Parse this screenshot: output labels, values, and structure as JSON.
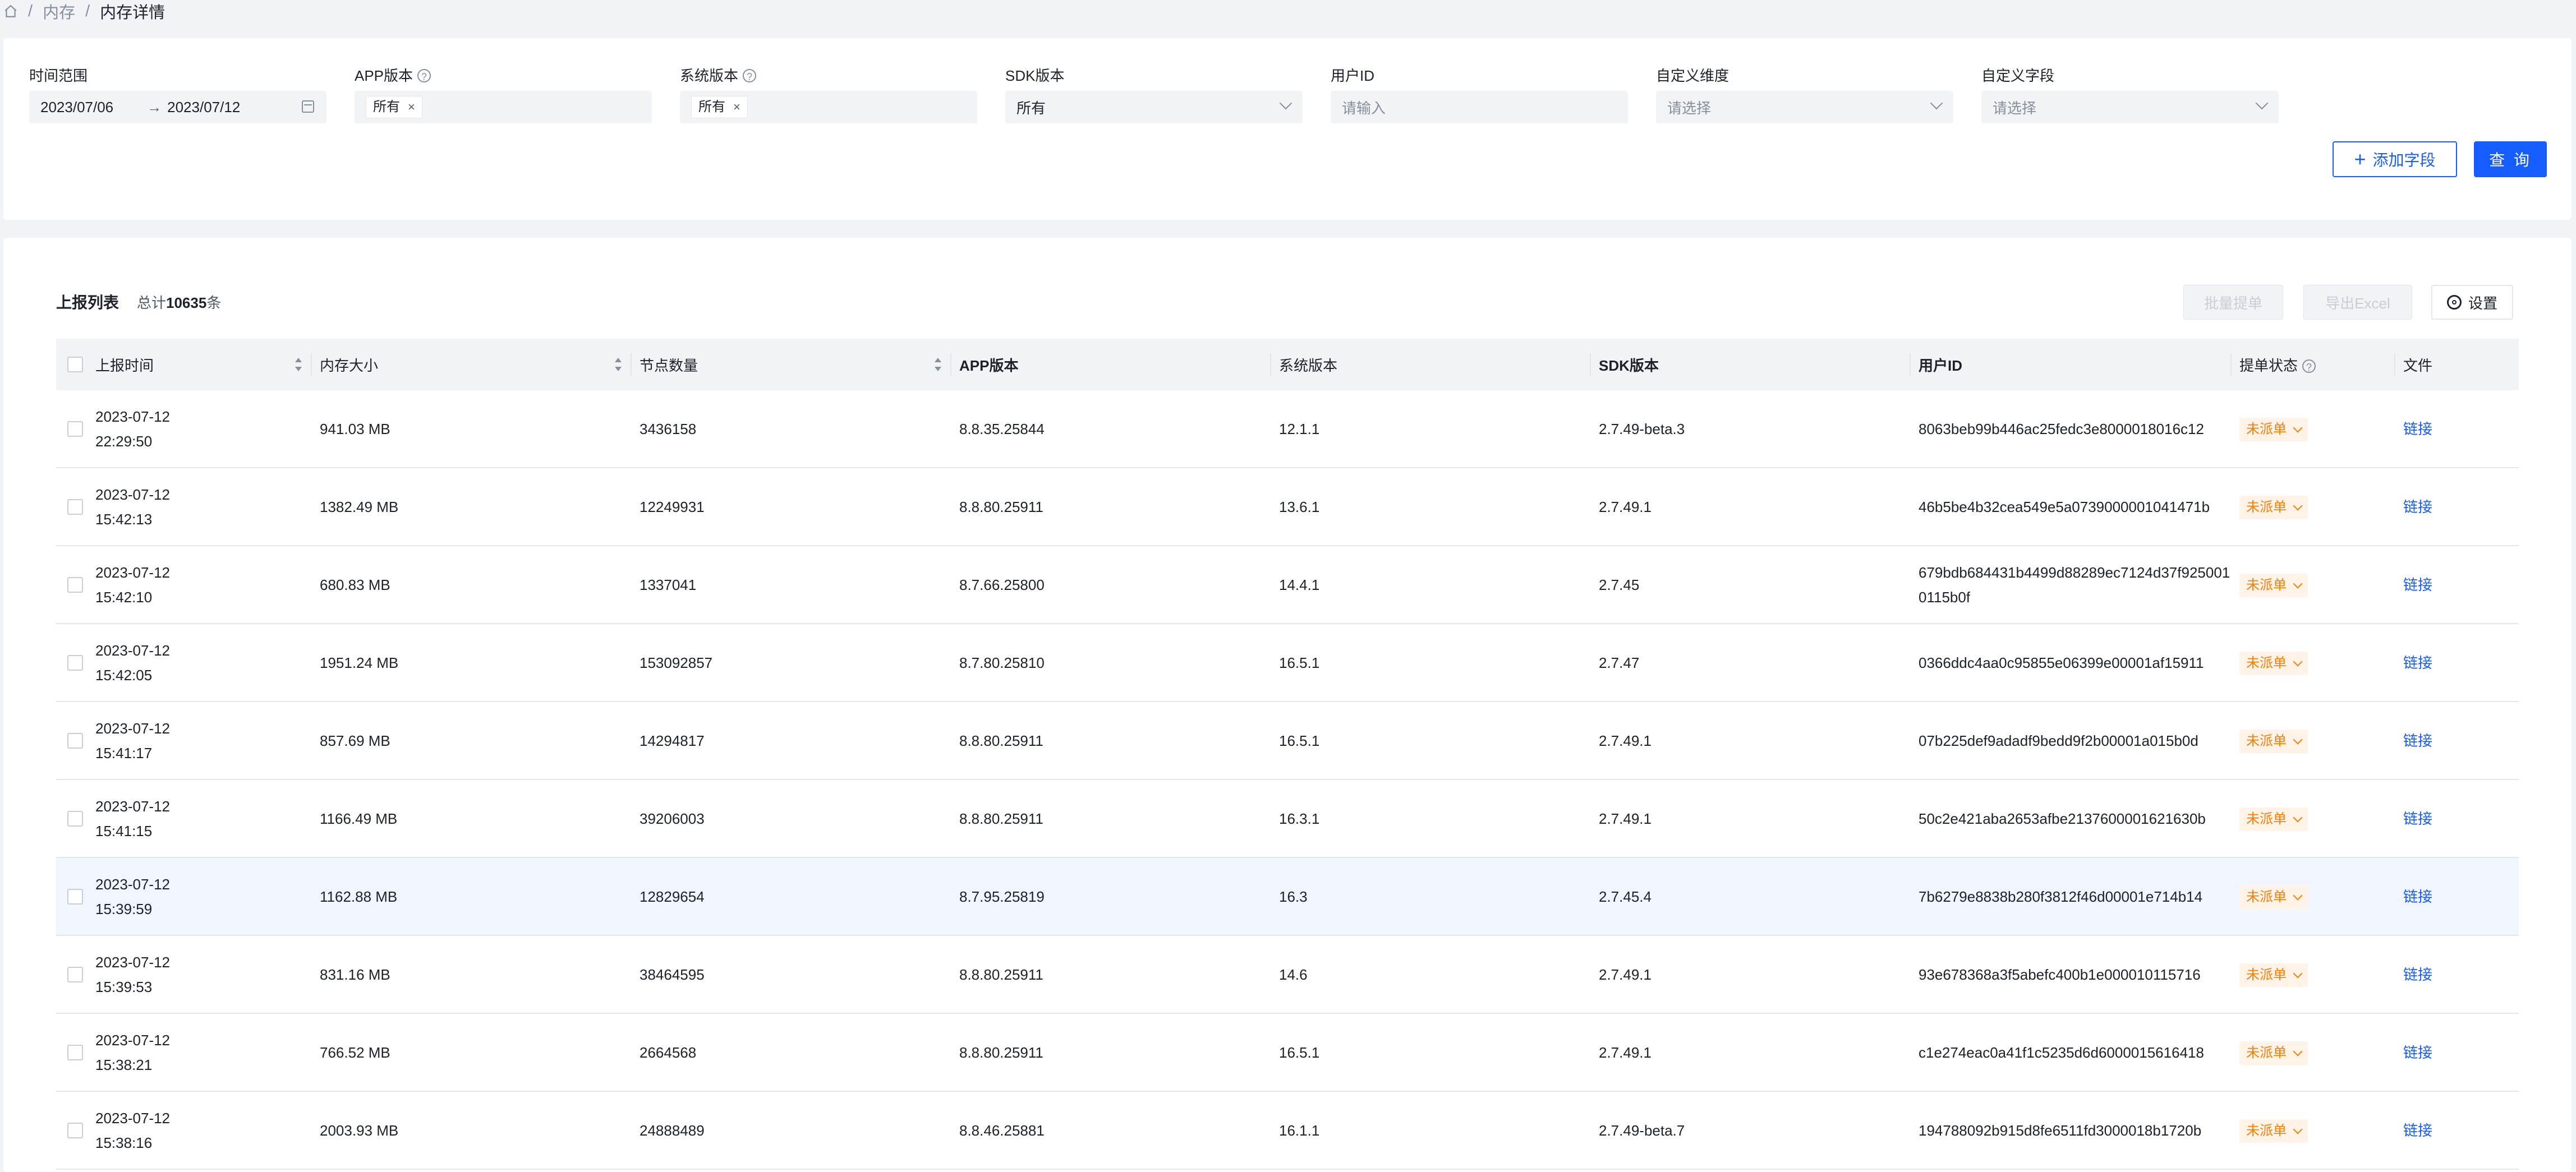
{
  "breadcrumb": {
    "items": [
      "内存"
    ],
    "current": "内存详情"
  },
  "filters": {
    "time_range": {
      "label": "时间范围",
      "start": "2023/07/06",
      "end": "2023/07/12"
    },
    "app_version": {
      "label": "APP版本",
      "tag": "所有"
    },
    "os_version": {
      "label": "系统版本",
      "tag": "所有"
    },
    "sdk_version": {
      "label": "SDK版本",
      "value": "所有"
    },
    "user_id": {
      "label": "用户ID",
      "placeholder": "请输入"
    },
    "custom_dimension": {
      "label": "自定义维度",
      "placeholder": "请选择"
    },
    "custom_field": {
      "label": "自定义字段",
      "placeholder": "请选择"
    },
    "add_field_label": "添加字段",
    "query_label": "查 询"
  },
  "list": {
    "title": "上报列表",
    "total_prefix": "总计",
    "total_count": "10635",
    "total_suffix": "条",
    "batch_label": "批量提单",
    "export_label": "导出Excel",
    "settings_label": "设置",
    "columns": [
      "上报时间",
      "内存大小",
      "节点数量",
      "APP版本",
      "系统版本",
      "SDK版本",
      "用户ID",
      "提单状态",
      "文件"
    ],
    "rows": [
      {
        "date": "2023-07-12",
        "time": "22:29:50",
        "memory": "941.03 MB",
        "nodes": "3436158",
        "app": "8.8.35.25844",
        "os": "12.1.1",
        "sdk": "2.7.49-beta.3",
        "user_id": "8063beb99b446ac25fedc3e8000018016c12",
        "status": "未派单",
        "file": "链接"
      },
      {
        "date": "2023-07-12",
        "time": "15:42:13",
        "memory": "1382.49 MB",
        "nodes": "12249931",
        "app": "8.8.80.25911",
        "os": "13.6.1",
        "sdk": "2.7.49.1",
        "user_id": "46b5be4b32cea549e5a0739000001041471b",
        "status": "未派单",
        "file": "链接"
      },
      {
        "date": "2023-07-12",
        "time": "15:42:10",
        "memory": "680.83 MB",
        "nodes": "1337041",
        "app": "8.7.66.25800",
        "os": "14.4.1",
        "sdk": "2.7.45",
        "user_id": "679bdb684431b4499d88289ec7124d37f9250010115b0f",
        "status": "未派单",
        "file": "链接"
      },
      {
        "date": "2023-07-12",
        "time": "15:42:05",
        "memory": "1951.24 MB",
        "nodes": "153092857",
        "app": "8.7.80.25810",
        "os": "16.5.1",
        "sdk": "2.7.47",
        "user_id": "0366ddc4aa0c95855e06399e00001af15911",
        "status": "未派单",
        "file": "链接"
      },
      {
        "date": "2023-07-12",
        "time": "15:41:17",
        "memory": "857.69 MB",
        "nodes": "14294817",
        "app": "8.8.80.25911",
        "os": "16.5.1",
        "sdk": "2.7.49.1",
        "user_id": "07b225def9adadf9bedd9f2b00001a015b0d",
        "status": "未派单",
        "file": "链接"
      },
      {
        "date": "2023-07-12",
        "time": "15:41:15",
        "memory": "1166.49 MB",
        "nodes": "39206003",
        "app": "8.8.80.25911",
        "os": "16.3.1",
        "sdk": "2.7.49.1",
        "user_id": "50c2e421aba2653afbe2137600001621630b",
        "status": "未派单",
        "file": "链接"
      },
      {
        "date": "2023-07-12",
        "time": "15:39:59",
        "memory": "1162.88 MB",
        "nodes": "12829654",
        "app": "8.7.95.25819",
        "os": "16.3",
        "sdk": "2.7.45.4",
        "user_id": "7b6279e8838b280f3812f46d00001e714b14",
        "status": "未派单",
        "file": "链接"
      },
      {
        "date": "2023-07-12",
        "time": "15:39:53",
        "memory": "831.16 MB",
        "nodes": "38464595",
        "app": "8.8.80.25911",
        "os": "14.6",
        "sdk": "2.7.49.1",
        "user_id": "93e678368a3f5abefc400b1e000010115716",
        "status": "未派单",
        "file": "链接"
      },
      {
        "date": "2023-07-12",
        "time": "15:38:21",
        "memory": "766.52 MB",
        "nodes": "2664568",
        "app": "8.8.80.25911",
        "os": "16.5.1",
        "sdk": "2.7.49.1",
        "user_id": "c1e274eac0a41f1c5235d6d6000015616418",
        "status": "未派单",
        "file": "链接"
      },
      {
        "date": "2023-07-12",
        "time": "15:38:16",
        "memory": "2003.93 MB",
        "nodes": "24888489",
        "app": "8.8.46.25881",
        "os": "16.1.1",
        "sdk": "2.7.49-beta.7",
        "user_id": "194788092b915d8fe6511fd3000018b1720b",
        "status": "未派单",
        "file": "链接"
      }
    ]
  },
  "colors": {
    "primary": "#165dff",
    "status_orange": "#ff7d00",
    "status_bg": "#fff3e8",
    "highlight_row": "#f0f5ff"
  }
}
